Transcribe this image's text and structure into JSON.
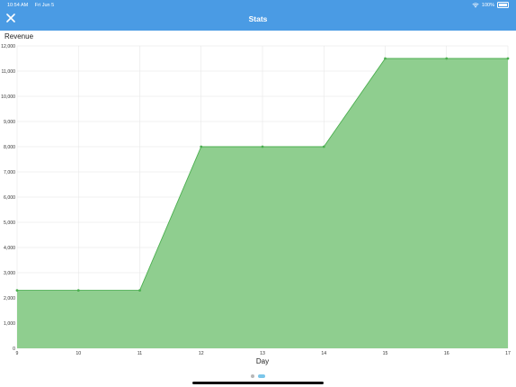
{
  "status_bar": {
    "time": "10:54 AM",
    "date": "Fri Jun 5",
    "battery": "100%"
  },
  "header": {
    "title": "Stats",
    "close_icon": "close-icon"
  },
  "colors": {
    "header_bg": "#4a9be4",
    "area_fill": "#8fce8f",
    "line": "#4caf50"
  },
  "pager": {
    "pages": 2,
    "active": 2
  },
  "chart_data": {
    "type": "area",
    "title": "Revenue",
    "xlabel": "Day",
    "ylabel": "",
    "x": [
      9,
      10,
      11,
      12,
      13,
      14,
      15,
      16,
      17
    ],
    "values": [
      2300,
      2300,
      2300,
      8000,
      8000,
      8000,
      11500,
      11500,
      11500
    ],
    "xlim": [
      9,
      17
    ],
    "ylim": [
      0,
      12000
    ],
    "yticks": [
      0,
      1000,
      2000,
      3000,
      4000,
      5000,
      6000,
      7000,
      8000,
      9000,
      10000,
      11000,
      12000
    ],
    "ytick_labels": [
      "0",
      "1,000",
      "2,000",
      "3,000",
      "4,000",
      "5,000",
      "6,000",
      "7,000",
      "8,000",
      "9,000",
      "10,000",
      "11,000",
      "12,000"
    ],
    "xtick_labels": [
      "9",
      "10",
      "11",
      "12",
      "13",
      "14",
      "15",
      "16",
      "17"
    ],
    "grid": true,
    "legend": "none"
  }
}
